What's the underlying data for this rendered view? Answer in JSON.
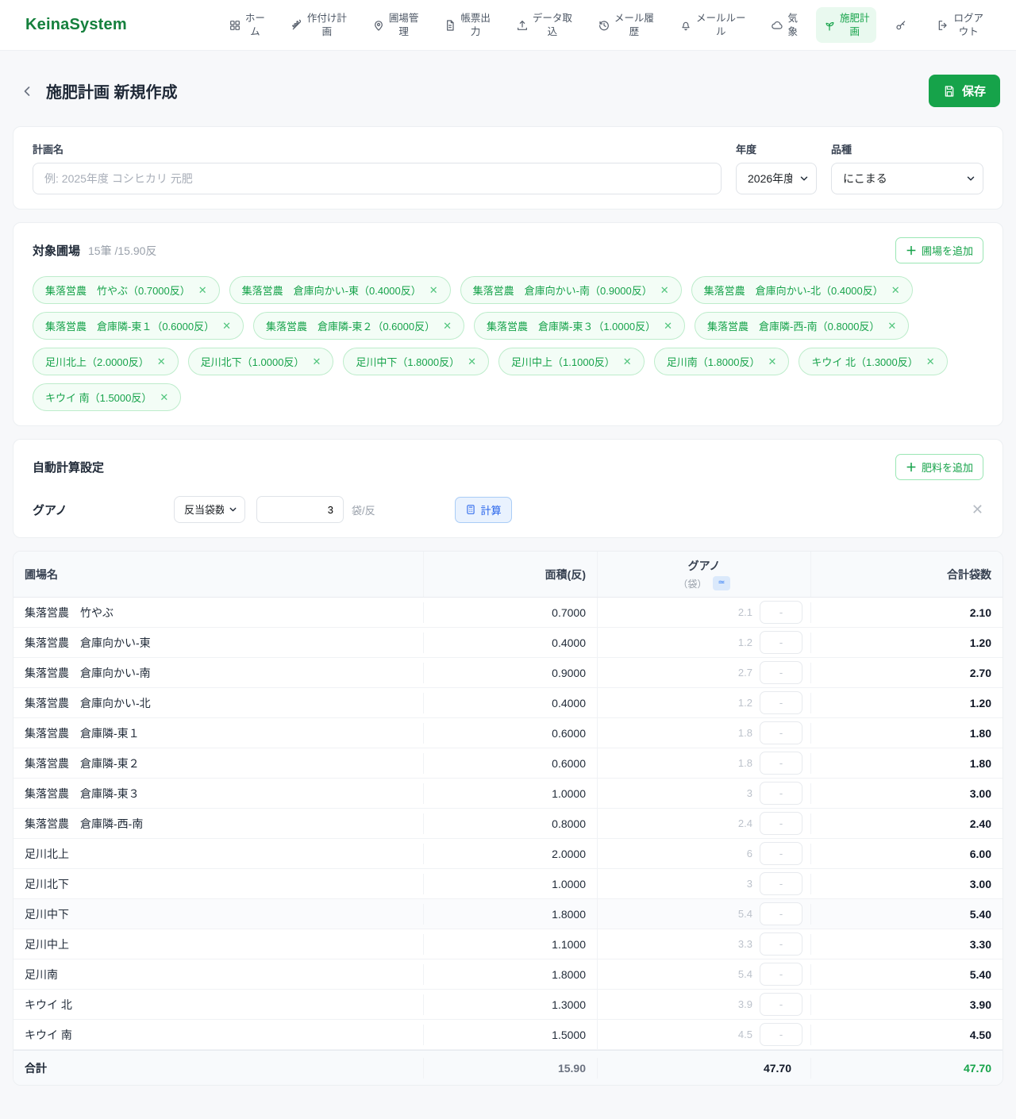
{
  "brand": "KeinaSystem",
  "nav": {
    "items": [
      {
        "icon": "grid",
        "label": "ホー\nム"
      },
      {
        "icon": "wheat",
        "label": "作付け計\n画"
      },
      {
        "icon": "map-pin",
        "label": "圃場管\n理"
      },
      {
        "icon": "document",
        "label": "帳票出\n力"
      },
      {
        "icon": "upload",
        "label": "データ取\n込"
      },
      {
        "icon": "history",
        "label": "メール履\n歴"
      },
      {
        "icon": "bell",
        "label": "メールルー\nル"
      },
      {
        "icon": "cloud",
        "label": "気\n象"
      },
      {
        "icon": "seedling",
        "label": "施肥計\n画",
        "active": true
      },
      {
        "icon": "key",
        "label": ""
      },
      {
        "icon": "logout",
        "label": "ログア\nウト"
      }
    ]
  },
  "header": {
    "title": "施肥計画 新規作成",
    "save_label": "保存"
  },
  "plan_form": {
    "name_label": "計画名",
    "name_placeholder": "例: 2025年度 コシヒカリ 元肥",
    "name_value": "",
    "year_label": "年度",
    "year_value": "2026年度",
    "variety_label": "品種",
    "variety_value": "にこまる"
  },
  "target_fields": {
    "title": "対象圃場",
    "summary": "15筆 /15.90反",
    "add_button": "圃場を追加",
    "tags": [
      "集落営農　竹やぶ（0.7000反）",
      "集落営農　倉庫向かい-東（0.4000反）",
      "集落営農　倉庫向かい-南（0.9000反）",
      "集落営農　倉庫向かい-北（0.4000反）",
      "集落営農　倉庫隣-東１（0.6000反）",
      "集落営農　倉庫隣-東２（0.6000反）",
      "集落営農　倉庫隣-東３（1.0000反）",
      "集落営農　倉庫隣-西-南（0.8000反）",
      "足川北上（2.0000反）",
      "足川北下（1.0000反）",
      "足川中下（1.8000反）",
      "足川中上（1.1000反）",
      "足川南（1.8000反）",
      "キウイ 北（1.3000反）",
      "キウイ 南（1.5000反）"
    ]
  },
  "auto_calc": {
    "title": "自動計算設定",
    "add_button": "肥料を追加",
    "rows": [
      {
        "name": "グアノ",
        "mode": "反当袋数",
        "value": "3",
        "unit": "袋/反",
        "calc_label": "計算"
      }
    ]
  },
  "table": {
    "columns": {
      "field": "圃場名",
      "area": "面積(反)",
      "fert_name": "グアノ",
      "fert_unit": "（袋）",
      "fert_badge": "≃",
      "total": "合計袋数"
    },
    "rows": [
      {
        "name": "集落営農　竹やぶ",
        "area": "0.7000",
        "calc": "2.1",
        "override_placeholder": "-",
        "total": "2.10"
      },
      {
        "name": "集落営農　倉庫向かい-東",
        "area": "0.4000",
        "calc": "1.2",
        "override_placeholder": "-",
        "total": "1.20"
      },
      {
        "name": "集落営農　倉庫向かい-南",
        "area": "0.9000",
        "calc": "2.7",
        "override_placeholder": "-",
        "total": "2.70"
      },
      {
        "name": "集落営農　倉庫向かい-北",
        "area": "0.4000",
        "calc": "1.2",
        "override_placeholder": "-",
        "total": "1.20"
      },
      {
        "name": "集落営農　倉庫隣-東１",
        "area": "0.6000",
        "calc": "1.8",
        "override_placeholder": "-",
        "total": "1.80"
      },
      {
        "name": "集落営農　倉庫隣-東２",
        "area": "0.6000",
        "calc": "1.8",
        "override_placeholder": "-",
        "total": "1.80"
      },
      {
        "name": "集落営農　倉庫隣-東３",
        "area": "1.0000",
        "calc": "3",
        "override_placeholder": "-",
        "total": "3.00"
      },
      {
        "name": "集落営農　倉庫隣-西-南",
        "area": "0.8000",
        "calc": "2.4",
        "override_placeholder": "-",
        "total": "2.40"
      },
      {
        "name": "足川北上",
        "area": "2.0000",
        "calc": "6",
        "override_placeholder": "-",
        "total": "6.00"
      },
      {
        "name": "足川北下",
        "area": "1.0000",
        "calc": "3",
        "override_placeholder": "-",
        "total": "3.00"
      },
      {
        "name": "足川中下",
        "area": "1.8000",
        "calc": "5.4",
        "override_placeholder": "-",
        "total": "5.40",
        "tinted": true
      },
      {
        "name": "足川中上",
        "area": "1.1000",
        "calc": "3.3",
        "override_placeholder": "-",
        "total": "3.30"
      },
      {
        "name": "足川南",
        "area": "1.8000",
        "calc": "5.4",
        "override_placeholder": "-",
        "total": "5.40"
      },
      {
        "name": "キウイ 北",
        "area": "1.3000",
        "calc": "3.9",
        "override_placeholder": "-",
        "total": "3.90"
      },
      {
        "name": "キウイ 南",
        "area": "1.5000",
        "calc": "4.5",
        "override_placeholder": "-",
        "total": "4.50"
      }
    ],
    "footer": {
      "label": "合計",
      "area": "15.90",
      "calc": "47.70",
      "total": "47.70"
    }
  }
}
